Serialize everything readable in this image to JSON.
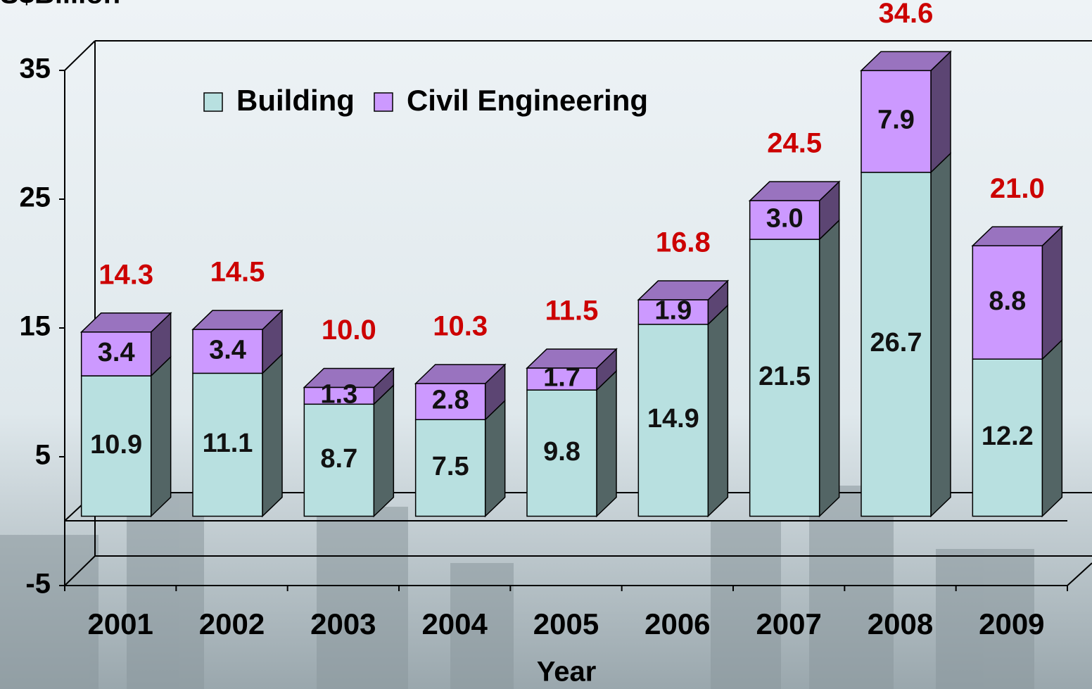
{
  "chart_data": {
    "type": "bar",
    "stacked": true,
    "y_label": "S$Billion",
    "x_label": "Year",
    "categories": [
      "2001",
      "2002",
      "2003",
      "2004",
      "2005",
      "2006",
      "2007",
      "2008",
      "2009"
    ],
    "series": [
      {
        "name": "Building",
        "color": "#b8e0e0",
        "values": [
          10.9,
          11.1,
          8.7,
          7.5,
          9.8,
          14.9,
          21.5,
          26.7,
          12.2
        ],
        "value_labels": [
          "10.9",
          "11.1",
          "8.7",
          "7.5",
          "9.8",
          "14.9",
          "21.5",
          "26.7",
          "12.2"
        ]
      },
      {
        "name": "Civil Engineering",
        "color": "#cc99ff",
        "values": [
          3.4,
          3.4,
          1.3,
          2.8,
          1.7,
          1.9,
          3.0,
          7.9,
          8.8
        ],
        "value_labels": [
          "3.4",
          "3.4",
          "1.3",
          "2.8",
          "1.7",
          "1.9",
          "3.0",
          "7.9",
          "8.8"
        ]
      }
    ],
    "totals": {
      "color": "#cc0000",
      "values": [
        14.3,
        14.5,
        10.0,
        10.3,
        11.5,
        16.8,
        24.5,
        34.6,
        21.0
      ],
      "value_labels": [
        "14.3",
        "14.5",
        "10.0",
        "10.3",
        "11.5",
        "16.8",
        "24.5",
        "34.6",
        "21.0"
      ]
    },
    "ylim": [
      -5,
      35
    ],
    "yticks": [
      -5,
      5,
      15,
      25,
      35
    ],
    "legend": "top"
  }
}
